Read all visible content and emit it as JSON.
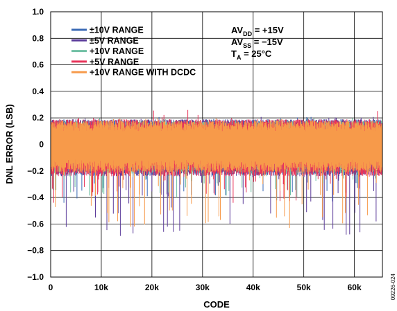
{
  "chart_data": {
    "type": "line",
    "xlabel": "CODE",
    "ylabel": "DNL ERROR (LSB)",
    "xlim": [
      0,
      65535
    ],
    "ylim": [
      -1.0,
      1.0
    ],
    "x_ticks": [
      "0",
      "10k",
      "20k",
      "30k",
      "40k",
      "50k",
      "60k"
    ],
    "y_ticks": [
      "1.0",
      "0.8",
      "0.6",
      "0.4",
      "0.2",
      "0",
      "−0.2",
      "−0.4",
      "−0.6",
      "−0.8",
      "−1.0"
    ],
    "grid": true,
    "legend_position": "top-left",
    "series": [
      {
        "name": "±10V RANGE",
        "color": "#3a6ab5",
        "band": [
          -0.23,
          0.19
        ],
        "spike_min": -0.44,
        "spike_max": 0.21
      },
      {
        "name": "±5V RANGE",
        "color": "#5a3a9a",
        "band": [
          -0.24,
          0.19
        ],
        "spike_min": -0.69,
        "spike_max": 0.21
      },
      {
        "name": "+10V RANGE",
        "color": "#6fbfa3",
        "band": [
          -0.22,
          0.18
        ],
        "spike_min": -0.4,
        "spike_max": 0.2
      },
      {
        "name": "+5V RANGE",
        "color": "#e8345a",
        "band": [
          -0.24,
          0.19
        ],
        "spike_min": -0.44,
        "spike_max": 0.26
      },
      {
        "name": "+10V RANGE WITH DCDC",
        "color": "#f79a4a",
        "band": [
          -0.21,
          0.18
        ],
        "spike_min": -0.63,
        "spike_max": 0.2
      }
    ],
    "conditions": [
      {
        "main": "AV",
        "sub": "DD",
        "rest": " = +15V"
      },
      {
        "main": "AV",
        "sub": "SS",
        "rest": " = −15V"
      },
      {
        "main": "T",
        "sub": "A",
        "rest": " = 25°C"
      }
    ]
  },
  "figure_id": "09226-024"
}
